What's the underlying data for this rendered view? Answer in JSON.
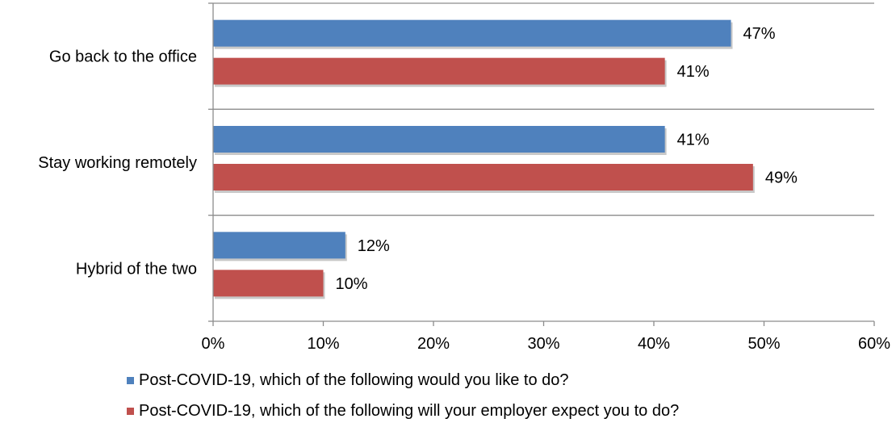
{
  "chart_data": {
    "type": "bar",
    "orientation": "horizontal",
    "categories": [
      "Go back to the office",
      "Stay working remotely",
      "Hybrid of the two"
    ],
    "series": [
      {
        "name": "Post-COVID-19, which of the following would you like to do?",
        "values": [
          47,
          41,
          12
        ],
        "labels": [
          "47%",
          "41%",
          "12%"
        ],
        "color": "#4f81bd"
      },
      {
        "name": "Post-COVID-19, which of the following will your employer expect you to do?",
        "values": [
          41,
          49,
          10
        ],
        "labels": [
          "41%",
          "49%",
          "10%"
        ],
        "color": "#c0504d"
      }
    ],
    "xlim": [
      0,
      60
    ],
    "xticks": [
      "0%",
      "10%",
      "20%",
      "30%",
      "40%",
      "50%",
      "60%"
    ],
    "grid": "category separators",
    "legend": "bottom"
  }
}
